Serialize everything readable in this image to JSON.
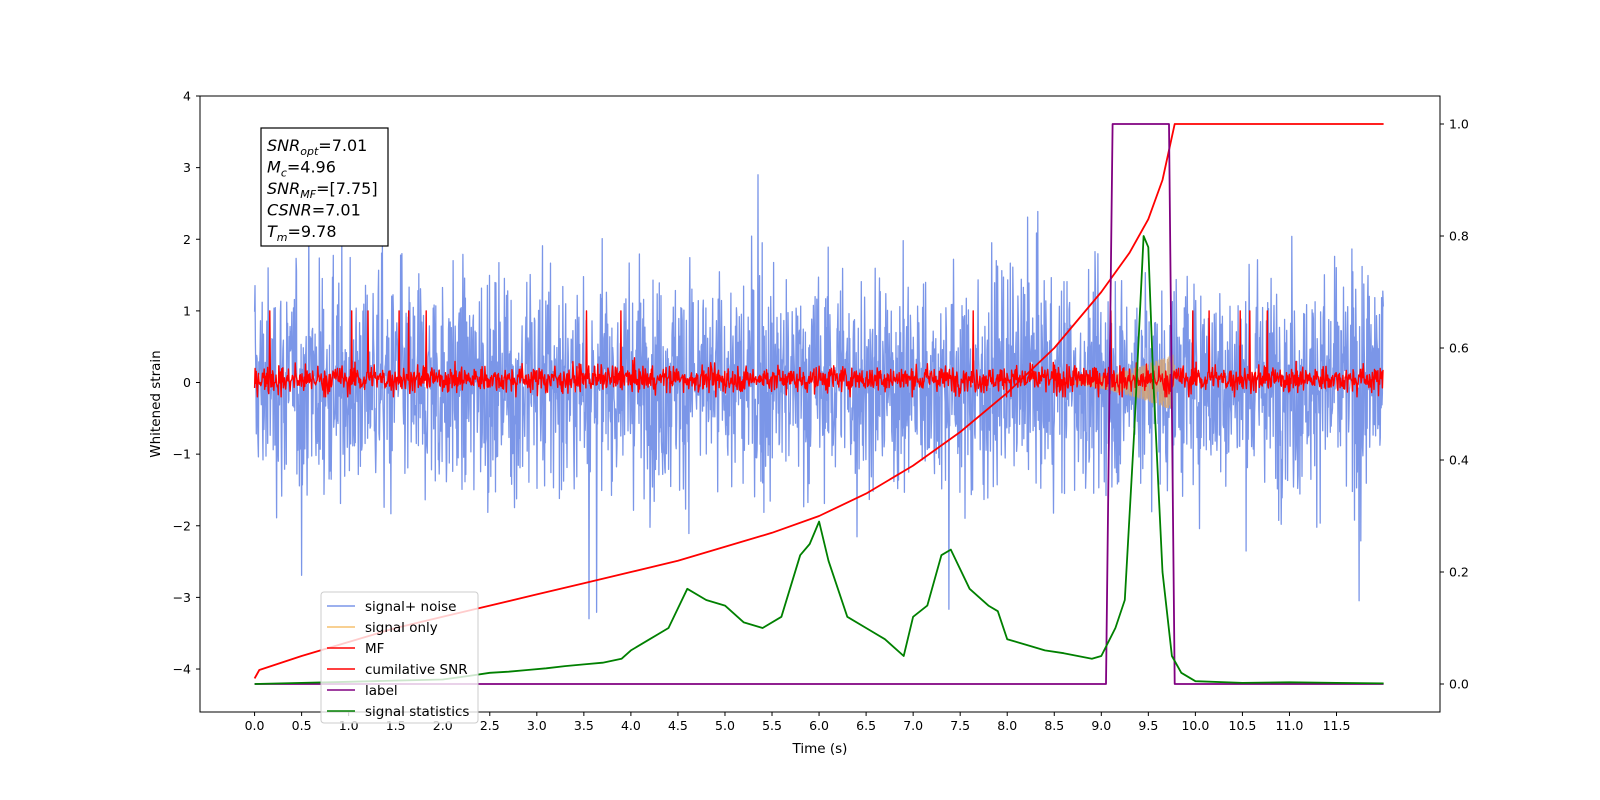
{
  "chart_data": {
    "type": "line",
    "xlabel": "Time (s)",
    "ylabel": "Whitened strain",
    "xlim": [
      -0.58,
      12.6
    ],
    "ylim": [
      -4.6,
      4.0
    ],
    "y2lim": [
      -0.05,
      1.05
    ],
    "x_ticks": [
      "0.0",
      "0.5",
      "1.0",
      "1.5",
      "2.0",
      "2.5",
      "3.0",
      "3.5",
      "4.0",
      "4.5",
      "5.0",
      "5.5",
      "6.0",
      "6.5",
      "7.0",
      "7.5",
      "8.0",
      "8.5",
      "9.0",
      "9.5",
      "10.0",
      "10.5",
      "11.0",
      "11.5"
    ],
    "y_ticks": [
      "4",
      "3",
      "2",
      "1",
      "0",
      "−1",
      "−2",
      "−3",
      "−4"
    ],
    "y2_ticks": [
      "1.0",
      "0.8",
      "0.6",
      "0.4",
      "0.2",
      "0.0"
    ],
    "info_box": [
      {
        "sym": "SNR",
        "sub": "opt",
        "rest": "=7.01"
      },
      {
        "sym": "M",
        "sub": "c",
        "rest": "=4.96"
      },
      {
        "sym": "SNR",
        "sub": "MF",
        "rest": "=[7.75]"
      },
      {
        "sym": "CSNR",
        "sub": "",
        "rest": "=7.01"
      },
      {
        "sym": "T",
        "sub": "m",
        "rest": "=9.78"
      }
    ],
    "legend": {
      "position": "lower left",
      "entries": [
        {
          "label": "signal+ noise",
          "color": "#7b96e8"
        },
        {
          "label": "signal only",
          "color": "#f5c16e"
        },
        {
          "label": "MF",
          "color": "#ff0000"
        },
        {
          "label": "cumilative SNR",
          "color": "#ff0000"
        },
        {
          "label": "label",
          "color": "#800080"
        },
        {
          "label": "signal statistics",
          "color": "#008000"
        }
      ]
    },
    "series": [
      {
        "name": "signal+ noise",
        "axis": "left",
        "color": "#7b96e8",
        "type": "noise",
        "t_range": [
          0.0,
          12.0
        ],
        "y_bounds": [
          -4.2,
          3.6
        ]
      },
      {
        "name": "signal only",
        "axis": "left",
        "color": "#d4a373",
        "type": "chirp",
        "t_start": 8.5,
        "t_end": 9.78,
        "amp_max": 0.4
      },
      {
        "name": "MF",
        "axis": "left",
        "color": "#ff0000",
        "type": "noise",
        "t_range": [
          0.0,
          12.0
        ],
        "y_bounds": [
          -0.2,
          1.0
        ]
      },
      {
        "name": "cumilative SNR",
        "axis": "right",
        "color": "#ff0000",
        "x": [
          0.0,
          0.05,
          0.5,
          1.0,
          1.5,
          2.0,
          2.5,
          3.0,
          3.5,
          4.0,
          4.5,
          5.0,
          5.5,
          6.0,
          6.5,
          7.0,
          7.5,
          8.0,
          8.5,
          9.0,
          9.3,
          9.5,
          9.65,
          9.78,
          10.0,
          11.0,
          12.0
        ],
        "y": [
          0.01,
          0.025,
          0.05,
          0.075,
          0.1,
          0.12,
          0.14,
          0.16,
          0.18,
          0.2,
          0.22,
          0.245,
          0.27,
          0.3,
          0.34,
          0.39,
          0.45,
          0.52,
          0.6,
          0.7,
          0.77,
          0.83,
          0.9,
          1.0,
          1.0,
          1.0,
          1.0
        ]
      },
      {
        "name": "label",
        "axis": "right",
        "color": "#800080",
        "x": [
          0.0,
          9.05,
          9.12,
          9.72,
          9.78,
          12.0
        ],
        "y": [
          0.0,
          0.0,
          1.0,
          1.0,
          0.0,
          0.0
        ]
      },
      {
        "name": "signal statistics",
        "axis": "right",
        "color": "#008000",
        "x": [
          0.0,
          0.5,
          1.0,
          1.5,
          2.0,
          2.3,
          2.5,
          2.7,
          2.9,
          3.1,
          3.3,
          3.5,
          3.7,
          3.9,
          4.0,
          4.2,
          4.4,
          4.6,
          4.8,
          5.0,
          5.2,
          5.4,
          5.6,
          5.8,
          5.9,
          6.0,
          6.1,
          6.3,
          6.5,
          6.7,
          6.9,
          7.0,
          7.15,
          7.3,
          7.4,
          7.6,
          7.8,
          7.9,
          8.0,
          8.2,
          8.4,
          8.6,
          8.9,
          9.0,
          9.15,
          9.25,
          9.35,
          9.45,
          9.5,
          9.55,
          9.65,
          9.75,
          9.85,
          10.0,
          10.5,
          11.0,
          11.5,
          12.0
        ],
        "y": [
          0.0,
          0.002,
          0.004,
          0.006,
          0.008,
          0.015,
          0.02,
          0.022,
          0.025,
          0.028,
          0.032,
          0.035,
          0.038,
          0.045,
          0.06,
          0.08,
          0.1,
          0.17,
          0.15,
          0.14,
          0.11,
          0.1,
          0.12,
          0.23,
          0.25,
          0.29,
          0.22,
          0.12,
          0.1,
          0.08,
          0.05,
          0.12,
          0.14,
          0.23,
          0.24,
          0.17,
          0.14,
          0.13,
          0.08,
          0.07,
          0.06,
          0.055,
          0.045,
          0.05,
          0.1,
          0.15,
          0.45,
          0.8,
          0.78,
          0.55,
          0.2,
          0.05,
          0.02,
          0.005,
          0.002,
          0.003,
          0.002,
          0.001
        ]
      }
    ]
  }
}
